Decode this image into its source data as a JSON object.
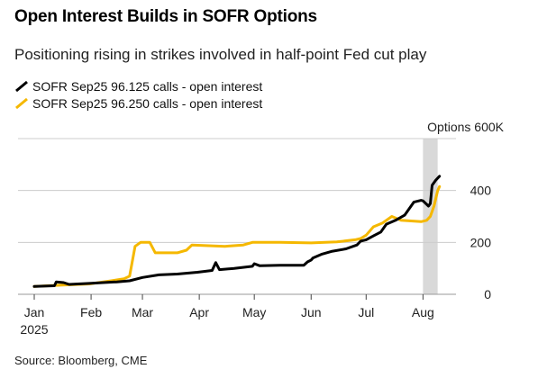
{
  "header": {
    "title": "Open Interest Builds in SOFR Options",
    "subtitle": "Positioning rising in strikes involved in half-point Fed cut play"
  },
  "footer": {
    "source": "Source: Bloomberg, CME"
  },
  "colors": {
    "series1": "#000000",
    "series2": "#f5b800",
    "shade": "#d9d9d9",
    "grid": "#cccccc"
  },
  "chart_data": {
    "type": "line",
    "title": "Open Interest Builds in SOFR Options",
    "subtitle": "Positioning rising in strikes involved in half-point Fed cut play",
    "source": "Source: Bloomberg, CME",
    "ylabel": "Options",
    "y_unit_label": "Options 600K",
    "ylim": [
      0,
      600
    ],
    "y_ticks": [
      0,
      200,
      400
    ],
    "y_tick_labels": [
      "0",
      "200",
      "400"
    ],
    "y_top_label": "Options 600K",
    "x_range": [
      "2025-01-01",
      "2025-08-19"
    ],
    "x_tick_labels": [
      {
        "label": "Jan",
        "date": "2025-01-01"
      },
      {
        "label": "Feb",
        "date": "2025-02-01"
      },
      {
        "label": "Mar",
        "date": "2025-03-01"
      },
      {
        "label": "Apr",
        "date": "2025-04-01"
      },
      {
        "label": "May",
        "date": "2025-05-01"
      },
      {
        "label": "Jun",
        "date": "2025-06-01"
      },
      {
        "label": "Jul",
        "date": "2025-07-01"
      },
      {
        "label": "Aug",
        "date": "2025-08-01"
      }
    ],
    "year_label": "2025",
    "grid": "horizontal",
    "legend_position": "top-left",
    "shaded_region": {
      "start": "2025-08-01",
      "end": "2025-08-09"
    },
    "series": [
      {
        "name": "SOFR Sep25 96.125 calls - open interest",
        "color": "#000000",
        "points": [
          [
            "2025-01-01",
            30
          ],
          [
            "2025-01-12",
            33
          ],
          [
            "2025-01-13",
            48
          ],
          [
            "2025-01-17",
            45
          ],
          [
            "2025-01-20",
            38
          ],
          [
            "2025-01-31",
            42
          ],
          [
            "2025-02-15",
            48
          ],
          [
            "2025-02-22",
            52
          ],
          [
            "2025-03-01",
            65
          ],
          [
            "2025-03-10",
            75
          ],
          [
            "2025-03-20",
            78
          ],
          [
            "2025-03-31",
            85
          ],
          [
            "2025-04-08",
            92
          ],
          [
            "2025-04-10",
            122
          ],
          [
            "2025-04-12",
            95
          ],
          [
            "2025-04-20",
            100
          ],
          [
            "2025-04-30",
            108
          ],
          [
            "2025-05-01",
            118
          ],
          [
            "2025-05-04",
            110
          ],
          [
            "2025-05-15",
            112
          ],
          [
            "2025-05-28",
            112
          ],
          [
            "2025-05-30",
            125
          ],
          [
            "2025-06-01",
            132
          ],
          [
            "2025-06-02",
            140
          ],
          [
            "2025-06-07",
            155
          ],
          [
            "2025-06-12",
            165
          ],
          [
            "2025-06-20",
            175
          ],
          [
            "2025-06-26",
            190
          ],
          [
            "2025-06-28",
            205
          ],
          [
            "2025-07-01",
            210
          ],
          [
            "2025-07-05",
            225
          ],
          [
            "2025-07-09",
            240
          ],
          [
            "2025-07-12",
            270
          ],
          [
            "2025-07-17",
            285
          ],
          [
            "2025-07-22",
            305
          ],
          [
            "2025-07-27",
            355
          ],
          [
            "2025-07-31",
            362
          ],
          [
            "2025-08-01",
            360
          ],
          [
            "2025-08-04",
            340
          ],
          [
            "2025-08-05",
            350
          ],
          [
            "2025-08-06",
            420
          ],
          [
            "2025-08-08",
            440
          ],
          [
            "2025-08-10",
            455
          ]
        ]
      },
      {
        "name": "SOFR Sep25 96.250 calls - open interest",
        "color": "#f5b800",
        "points": [
          [
            "2025-01-01",
            30
          ],
          [
            "2025-01-15",
            35
          ],
          [
            "2025-01-31",
            40
          ],
          [
            "2025-02-12",
            52
          ],
          [
            "2025-02-19",
            60
          ],
          [
            "2025-02-22",
            70
          ],
          [
            "2025-02-25",
            185
          ],
          [
            "2025-02-28",
            200
          ],
          [
            "2025-03-05",
            200
          ],
          [
            "2025-03-08",
            160
          ],
          [
            "2025-03-20",
            160
          ],
          [
            "2025-03-25",
            170
          ],
          [
            "2025-03-28",
            190
          ],
          [
            "2025-04-15",
            185
          ],
          [
            "2025-04-25",
            190
          ],
          [
            "2025-04-30",
            200
          ],
          [
            "2025-05-15",
            200
          ],
          [
            "2025-06-01",
            198
          ],
          [
            "2025-06-15",
            202
          ],
          [
            "2025-06-25",
            210
          ],
          [
            "2025-06-28",
            215
          ],
          [
            "2025-07-01",
            228
          ],
          [
            "2025-07-05",
            260
          ],
          [
            "2025-07-10",
            275
          ],
          [
            "2025-07-15",
            300
          ],
          [
            "2025-07-20",
            285
          ],
          [
            "2025-07-31",
            280
          ],
          [
            "2025-08-03",
            285
          ],
          [
            "2025-08-05",
            300
          ],
          [
            "2025-08-07",
            340
          ],
          [
            "2025-08-09",
            400
          ],
          [
            "2025-08-10",
            415
          ]
        ]
      }
    ]
  }
}
